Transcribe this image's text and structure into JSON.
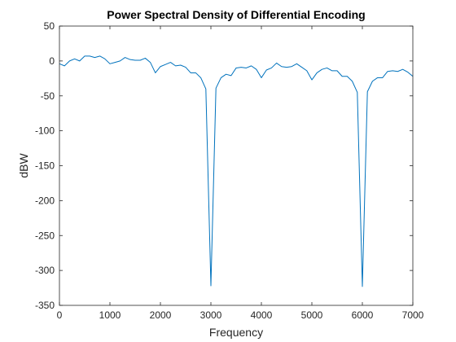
{
  "chart_data": {
    "type": "line",
    "title": "Power Spectral Density of Differential Encoding",
    "xlabel": "Frequency",
    "ylabel": "dBW",
    "xlim": [
      0,
      7000
    ],
    "ylim": [
      -350,
      50
    ],
    "xticks": [
      0,
      1000,
      2000,
      3000,
      4000,
      5000,
      6000,
      7000
    ],
    "yticks": [
      50,
      0,
      -50,
      -100,
      -150,
      -200,
      -250,
      -300,
      -350
    ],
    "grid": false,
    "box": true,
    "series": [
      {
        "color": "#0072BD",
        "x": [
          0,
          100,
          200,
          300,
          400,
          500,
          600,
          700,
          800,
          900,
          1000,
          1100,
          1200,
          1300,
          1400,
          1500,
          1600,
          1700,
          1800,
          1900,
          2000,
          2100,
          2200,
          2300,
          2400,
          2500,
          2600,
          2700,
          2800,
          2900,
          3000,
          3100,
          3200,
          3300,
          3400,
          3500,
          3600,
          3700,
          3800,
          3900,
          4000,
          4100,
          4200,
          4300,
          4400,
          4500,
          4600,
          4700,
          4800,
          4900,
          5000,
          5100,
          5200,
          5300,
          5400,
          5500,
          5600,
          5700,
          5800,
          5900,
          6000,
          6100,
          6200,
          6300,
          6400,
          6500,
          6600,
          6700,
          6800,
          6900,
          7000
        ],
        "y": [
          -4,
          -7,
          0,
          3,
          0,
          7,
          7,
          5,
          7,
          3,
          -4,
          -2,
          0,
          5,
          2,
          1,
          1,
          4,
          -2,
          -17,
          -8,
          -5,
          -2,
          -7,
          -6,
          -9,
          -17,
          -17,
          -24,
          -40,
          -322,
          -39,
          -24,
          -19,
          -21,
          -10,
          -9,
          -10,
          -7,
          -12,
          -24,
          -13,
          -10,
          -3,
          -8,
          -9,
          -8,
          -4,
          -9,
          -14,
          -27,
          -17,
          -12,
          -10,
          -14,
          -14,
          -22,
          -22,
          -29,
          -45,
          -323,
          -44,
          -29,
          -24,
          -24,
          -15,
          -14,
          -15,
          -12,
          -16,
          -22
        ]
      }
    ]
  }
}
